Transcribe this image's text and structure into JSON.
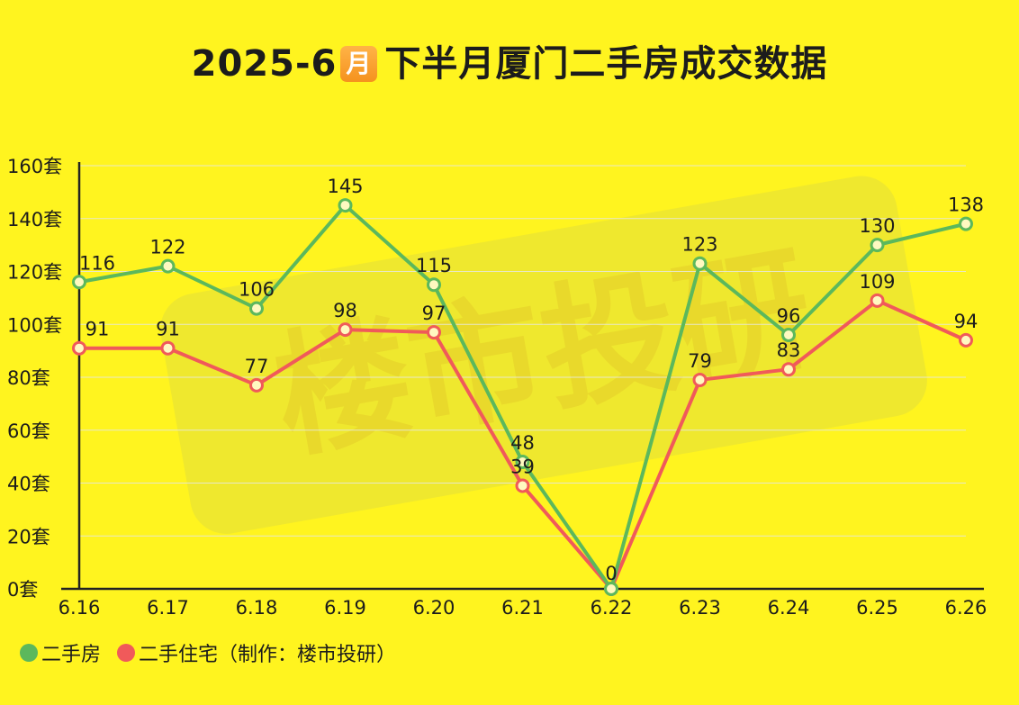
{
  "title": {
    "prefix": "2025-6",
    "badge": "月",
    "suffix": "下半月厦门二手房成交数据"
  },
  "watermark": "楼市投研",
  "legend": {
    "items": [
      "二手房",
      "二手住宅（制作：楼市投研）"
    ]
  },
  "colors": {
    "background": "#FFF41F",
    "series_green": "#5CB85C",
    "series_red": "#F05A5A",
    "grid": "#E8E8C8",
    "axis": "#222222"
  },
  "chart_data": {
    "type": "line",
    "title": "2025-6月 下半月厦门二手房成交数据",
    "xlabel": "",
    "ylabel": "",
    "categories": [
      "6.16",
      "6.17",
      "6.18",
      "6.19",
      "6.20",
      "6.21",
      "6.22",
      "6.23",
      "6.24",
      "6.25",
      "6.26"
    ],
    "y_ticks": [
      "0套",
      "20套",
      "40套",
      "60套",
      "80套",
      "100套",
      "120套",
      "140套",
      "160套"
    ],
    "ylim": [
      0,
      160
    ],
    "grid": true,
    "legend_position": "bottom-left",
    "series": [
      {
        "name": "二手房",
        "color": "#5CB85C",
        "values": [
          116,
          122,
          106,
          145,
          115,
          48,
          0,
          123,
          96,
          130,
          138
        ]
      },
      {
        "name": "二手住宅",
        "color": "#F05A5A",
        "values": [
          91,
          91,
          77,
          98,
          97,
          39,
          0,
          79,
          83,
          109,
          94
        ]
      }
    ]
  }
}
